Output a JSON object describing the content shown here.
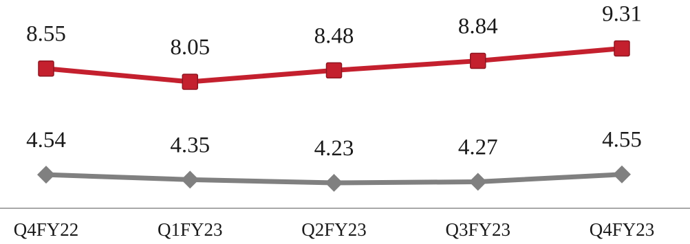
{
  "chart_data": {
    "type": "line",
    "title": "",
    "xlabel": "",
    "ylabel": "",
    "categories": [
      "Q4FY22",
      "Q1FY23",
      "Q2FY23",
      "Q3FY23",
      "Q4FY23"
    ],
    "grid": false,
    "legend": "none",
    "series": [
      {
        "values": [
          8.55,
          8.05,
          8.48,
          8.84,
          9.31
        ],
        "color": "#c4202e",
        "marker": "square",
        "labels": [
          "8.55",
          "8.05",
          "8.48",
          "8.84",
          "9.31"
        ]
      },
      {
        "values": [
          4.54,
          4.35,
          4.23,
          4.27,
          4.55
        ],
        "color": "#808080",
        "marker": "diamond",
        "labels": [
          "4.54",
          "4.35",
          "4.23",
          "4.27",
          "4.55"
        ]
      }
    ],
    "axis_line_color": "#8c8c8c"
  }
}
